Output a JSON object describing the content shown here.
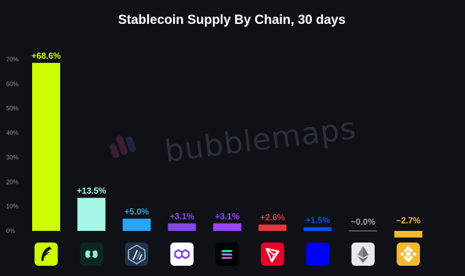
{
  "watermark": "bubblemaps",
  "chart_data": {
    "type": "bar",
    "title": "Stablecoin Supply By Chain, 30 days",
    "xlabel": "",
    "ylabel": "",
    "ylim": [
      -3.5,
      70
    ],
    "yticks": [
      0,
      10,
      20,
      30,
      40,
      50,
      60,
      70
    ],
    "ytick_labels": [
      "0%",
      "10%",
      "20%",
      "30%",
      "40%",
      "50%",
      "60%",
      "70%"
    ],
    "grid": false,
    "categories": [
      {
        "icon": "robinhood-feather-icon",
        "color": "#ccff00",
        "value": 68.6,
        "label": "+68.6%",
        "icon_bg": "#ccff00",
        "icon_fg": "#0f1117"
      },
      {
        "icon": "hyperliquid-icon",
        "color": "#a6f7e6",
        "value": 13.5,
        "label": "+13.5%",
        "icon_bg": "#0d2620",
        "icon_fg": "#8ff0d8"
      },
      {
        "icon": "arbitrum-icon",
        "color": "#2aa4f4",
        "value": 5.0,
        "label": "+5.0%",
        "icon_bg": "#233248",
        "icon_fg": "#ffffff"
      },
      {
        "icon": "polygon-icon",
        "color": "#8247e5",
        "value": 3.1,
        "label": "+3.1%",
        "icon_bg": "#ffffff",
        "icon_fg": "#8247e5"
      },
      {
        "icon": "solana-icon",
        "color": "#9945ff",
        "value": 3.1,
        "label": "+3.1%",
        "icon_bg": "#000000",
        "icon_fg": "#14f195"
      },
      {
        "icon": "tron-icon",
        "color": "#e5383b",
        "value": 2.6,
        "label": "+2.6%",
        "icon_bg": "#eb0029",
        "icon_fg": "#ffffff"
      },
      {
        "icon": "base-icon",
        "color": "#0052ff",
        "value": 1.5,
        "label": "+1.5%",
        "icon_bg": "#0000ff",
        "icon_fg": "#0000ff"
      },
      {
        "icon": "ethereum-icon",
        "color": "#9aa0ad",
        "value": 0.0,
        "label": "~0.0%",
        "icon_bg": "#e8e8ea",
        "icon_fg": "#6b6f7a"
      },
      {
        "icon": "bnb-chain-icon",
        "color": "#f3ba2f",
        "value": -2.7,
        "label": "−2.7%",
        "icon_bg": "#f3ba2f",
        "icon_fg": "#ffffff"
      }
    ]
  }
}
